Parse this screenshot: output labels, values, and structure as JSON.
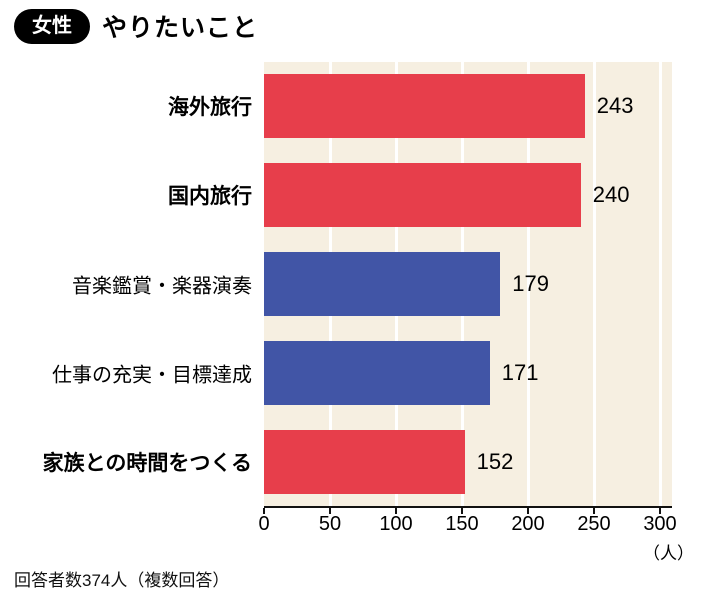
{
  "header": {
    "badge": "女性",
    "title": "やりたいこと"
  },
  "footer": {
    "note": "回答者数374人（複数回答）"
  },
  "chart_data": {
    "type": "bar",
    "orientation": "horizontal",
    "group": "女性",
    "title": "やりたいこと",
    "categories": [
      "海外旅行",
      "国内旅行",
      "音楽鑑賞・楽器演奏",
      "仕事の充実・目標達成",
      "家族との時間をつくる"
    ],
    "values": [
      243,
      240,
      179,
      171,
      152
    ],
    "rows": [
      {
        "label": "海外旅行",
        "value": 243,
        "color": "#e73e4b",
        "bold": true
      },
      {
        "label": "国内旅行",
        "value": 240,
        "color": "#e73e4b",
        "bold": true
      },
      {
        "label": "音楽鑑賞・楽器演奏",
        "value": 179,
        "color": "#4155a6",
        "bold": false
      },
      {
        "label": "仕事の充実・目標達成",
        "value": 171,
        "color": "#4155a6",
        "bold": false
      },
      {
        "label": "家族との時間をつくる",
        "value": 152,
        "color": "#e73e4b",
        "bold": true
      }
    ],
    "xlim": [
      0,
      300
    ],
    "xticks": [
      0,
      50,
      100,
      150,
      200,
      250,
      300
    ],
    "unit": "（人）",
    "grid": true,
    "legend": "none",
    "colors": {
      "highlight": "#e73e4b",
      "secondary": "#4155a6",
      "plot_background": "#f6efe1"
    },
    "note": "回答者数374人（複数回答）"
  }
}
